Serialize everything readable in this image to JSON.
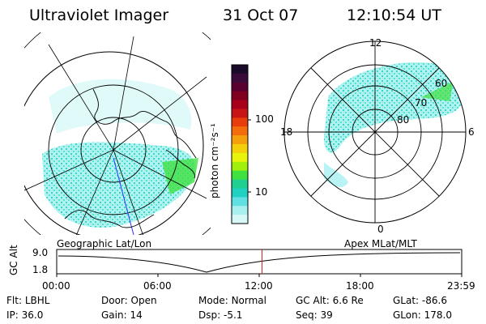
{
  "header": {
    "instrument": "Ultraviolet Imager",
    "date": "31 Oct 07",
    "time": "12:10:54 UT"
  },
  "colorbar": {
    "label": "photon cm⁻²s⁻¹",
    "ticks": [
      "100",
      "10"
    ],
    "colors": [
      "#1a0a2a",
      "#3a0a3a",
      "#5a0030",
      "#800020",
      "#a8001a",
      "#c81414",
      "#e83c0c",
      "#f46c0c",
      "#f4a00c",
      "#f4d00c",
      "#e8f40c",
      "#a0f00c",
      "#40e040",
      "#20d090",
      "#20d0c0",
      "#60e0e0",
      "#a8f0f0",
      "#d8f8f8"
    ]
  },
  "left_panel": {
    "caption": "Geographic Lat/Lon"
  },
  "right_panel": {
    "caption": "Apex MLat/MLT",
    "mlt_labels": {
      "top": "12",
      "left": "18",
      "right": "6",
      "bottom": "0"
    },
    "lat_labels": [
      "60",
      "70",
      "80"
    ]
  },
  "timeline": {
    "ylabel": "GC Alt",
    "y_ticks": [
      "9.0",
      "1.8"
    ],
    "x_ticks": [
      "00:00",
      "06:00",
      "12:00",
      "18:00",
      "23:59"
    ],
    "current_time_fraction": 0.507,
    "marker_color": "#e02020"
  },
  "info": {
    "row1": [
      {
        "label": "Flt:",
        "value": "LBHL"
      },
      {
        "label": "Door:",
        "value": "Open"
      },
      {
        "label": "Mode:",
        "value": "Normal"
      },
      {
        "label": "GC Alt:",
        "value": "6.6 Re"
      },
      {
        "label": "GLat:",
        "value": "-86.6"
      }
    ],
    "row2": [
      {
        "label": "IP:",
        "value": "36.0"
      },
      {
        "label": "Gain:",
        "value": "14"
      },
      {
        "label": "Dsp:",
        "value": "-5.1"
      },
      {
        "label": "Seq:",
        "value": "39"
      },
      {
        "label": "GLon:",
        "value": "178.0"
      }
    ]
  }
}
